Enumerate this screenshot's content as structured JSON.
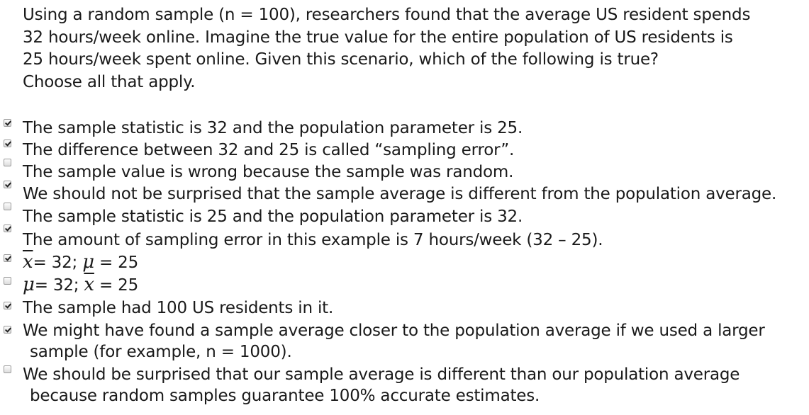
{
  "question": {
    "line1": "Using a random sample (n = 100), researchers found that the average US resident spends",
    "line2": "32 hours/week online. Imagine the true value for the entire population of US residents is",
    "line3": "25 hours/week spent online. Given this scenario, which of the following is true?",
    "line4": "Choose all that apply."
  },
  "options": [
    {
      "text": "The sample statistic is 32 and the population parameter is 25.",
      "checked": true
    },
    {
      "text": "The difference between 32 and 25 is called “sampling error”.",
      "checked": true
    },
    {
      "text": "The sample value is wrong because the sample was random.",
      "checked": false
    },
    {
      "text": "We should not be surprised that the sample average is different from the population average.",
      "checked": true
    },
    {
      "text": "The sample statistic is 25 and the population parameter is 32.",
      "checked": false
    },
    {
      "text": "The amount of sampling error in this example is 7 hours/week (32 – 25).",
      "checked": true
    },
    {
      "sym1": "x",
      "eq1": "= 32; ",
      "sym2": "μ",
      "eq2": " = 25",
      "checked": true
    },
    {
      "sym1": "μ",
      "eq1": "= 32; ",
      "sym2": "x",
      "eq2": " = 25",
      "checked": false
    },
    {
      "text": "The sample had 100 US residents in it.",
      "checked": true
    },
    {
      "text": "We might have found a sample average closer to the population average if we used a larger",
      "text2": "sample (for example, n = 1000).",
      "checked": true
    },
    {
      "text": "We should be surprised that our sample average is different than our population average",
      "text2": "because random samples guarantee 100% accurate estimates.",
      "checked": false
    }
  ]
}
